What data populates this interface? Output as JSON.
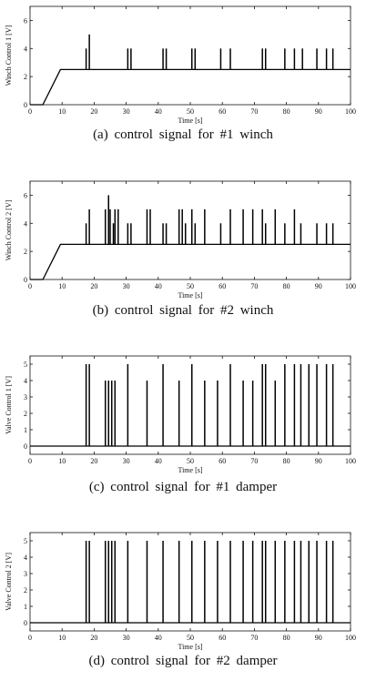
{
  "chart_data": [
    {
      "type": "line",
      "ylabel": "Winch Control 1 [V]",
      "xlabel": "Time [s]",
      "xlim": [
        0,
        100
      ],
      "ylim": [
        0,
        7
      ],
      "xticks": [
        0,
        10,
        20,
        30,
        40,
        50,
        60,
        70,
        80,
        90,
        100
      ],
      "yticks": [
        0,
        2,
        4,
        6
      ],
      "baseline": [
        [
          0,
          0
        ],
        [
          4,
          0
        ],
        [
          9.5,
          2.5
        ],
        [
          100,
          2.5
        ]
      ],
      "spikes": [
        [
          17.5,
          4
        ],
        [
          18.5,
          5
        ],
        [
          30.5,
          4
        ],
        [
          31.5,
          4
        ],
        [
          41.5,
          4
        ],
        [
          42.5,
          4
        ],
        [
          50.5,
          4
        ],
        [
          51.5,
          4
        ],
        [
          59.5,
          4
        ],
        [
          62.5,
          4
        ],
        [
          72.5,
          4
        ],
        [
          73.5,
          4
        ],
        [
          79.5,
          4
        ],
        [
          82.5,
          4
        ],
        [
          85,
          4
        ],
        [
          89.5,
          4
        ],
        [
          92.5,
          4
        ],
        [
          94.5,
          4
        ]
      ],
      "caption": "(a)  control  signal  for  #1  winch"
    },
    {
      "type": "line",
      "ylabel": "Winch Control 2 [V]",
      "xlabel": "Time [s]",
      "xlim": [
        0,
        100
      ],
      "ylim": [
        0,
        7
      ],
      "xticks": [
        0,
        10,
        20,
        30,
        40,
        50,
        60,
        70,
        80,
        90,
        100
      ],
      "yticks": [
        0,
        2,
        4,
        6
      ],
      "baseline": [
        [
          0,
          0
        ],
        [
          4,
          0
        ],
        [
          9.5,
          2.5
        ],
        [
          100,
          2.5
        ]
      ],
      "spikes": [
        [
          17.5,
          4
        ],
        [
          18.5,
          5
        ],
        [
          23.5,
          5
        ],
        [
          24.5,
          6
        ],
        [
          25,
          5
        ],
        [
          26,
          4
        ],
        [
          26.5,
          5
        ],
        [
          27.5,
          5
        ],
        [
          30.5,
          4
        ],
        [
          31.5,
          4
        ],
        [
          36.5,
          5
        ],
        [
          37.5,
          5
        ],
        [
          41.5,
          4
        ],
        [
          42.5,
          4
        ],
        [
          46.5,
          5
        ],
        [
          47.5,
          5
        ],
        [
          48.5,
          4
        ],
        [
          50.5,
          5
        ],
        [
          51.5,
          4
        ],
        [
          54.5,
          5
        ],
        [
          59.5,
          4
        ],
        [
          62.5,
          5
        ],
        [
          66.5,
          5
        ],
        [
          69.5,
          5
        ],
        [
          72.5,
          5
        ],
        [
          73.5,
          4
        ],
        [
          76.5,
          5
        ],
        [
          79.5,
          4
        ],
        [
          82.5,
          5
        ],
        [
          84.5,
          4
        ],
        [
          89.5,
          4
        ],
        [
          92.5,
          4
        ],
        [
          94.5,
          4
        ]
      ],
      "caption": "(b)  control  signal  for  #2  winch"
    },
    {
      "type": "line",
      "ylabel": "Valve Control 1 [V]",
      "xlabel": "Time [s]",
      "xlim": [
        0,
        100
      ],
      "ylim": [
        -0.5,
        5.5
      ],
      "xticks": [
        0,
        10,
        20,
        30,
        40,
        50,
        60,
        70,
        80,
        90,
        100
      ],
      "yticks": [
        0,
        1,
        2,
        3,
        4,
        5
      ],
      "baseline": [
        [
          0,
          0
        ],
        [
          100,
          0
        ]
      ],
      "spikes": [
        [
          17.5,
          5
        ],
        [
          18.5,
          5
        ],
        [
          23.5,
          4
        ],
        [
          24.5,
          4
        ],
        [
          25.5,
          4
        ],
        [
          26.5,
          4
        ],
        [
          30.5,
          5
        ],
        [
          36.5,
          4
        ],
        [
          41.5,
          5
        ],
        [
          46.5,
          4
        ],
        [
          50.5,
          5
        ],
        [
          54.5,
          4
        ],
        [
          58.5,
          4
        ],
        [
          62.5,
          5
        ],
        [
          66.5,
          4
        ],
        [
          69.5,
          4
        ],
        [
          72.5,
          5
        ],
        [
          73.5,
          5
        ],
        [
          76.5,
          4
        ],
        [
          79.5,
          5
        ],
        [
          82.5,
          5
        ],
        [
          84.5,
          5
        ],
        [
          87,
          5
        ],
        [
          89.5,
          5
        ],
        [
          92.5,
          5
        ],
        [
          94.5,
          5
        ]
      ],
      "caption": "(c)  control  signal  for  #1  damper"
    },
    {
      "type": "line",
      "ylabel": "Valve Control 2 [V]",
      "xlabel": "Time [s]",
      "xlim": [
        0,
        100
      ],
      "ylim": [
        -0.5,
        5.5
      ],
      "xticks": [
        0,
        10,
        20,
        30,
        40,
        50,
        60,
        70,
        80,
        90,
        100
      ],
      "yticks": [
        0,
        1,
        2,
        3,
        4,
        5
      ],
      "baseline": [
        [
          0,
          0
        ],
        [
          100,
          0
        ]
      ],
      "spikes": [
        [
          17.5,
          5
        ],
        [
          18.5,
          5
        ],
        [
          23.5,
          5
        ],
        [
          24.5,
          5
        ],
        [
          25.5,
          5
        ],
        [
          26.5,
          5
        ],
        [
          30.5,
          5
        ],
        [
          36.5,
          5
        ],
        [
          41.5,
          5
        ],
        [
          46.5,
          5
        ],
        [
          50.5,
          5
        ],
        [
          54.5,
          5
        ],
        [
          58.5,
          5
        ],
        [
          62.5,
          5
        ],
        [
          66.5,
          5
        ],
        [
          69.5,
          5
        ],
        [
          72.5,
          5
        ],
        [
          73.5,
          5
        ],
        [
          76.5,
          5
        ],
        [
          79.5,
          5
        ],
        [
          82.5,
          5
        ],
        [
          84.5,
          5
        ],
        [
          87,
          5
        ],
        [
          89.5,
          5
        ],
        [
          92.5,
          5
        ],
        [
          94.5,
          5
        ]
      ],
      "caption": "(d)  control  signal  for  #2  damper"
    }
  ]
}
